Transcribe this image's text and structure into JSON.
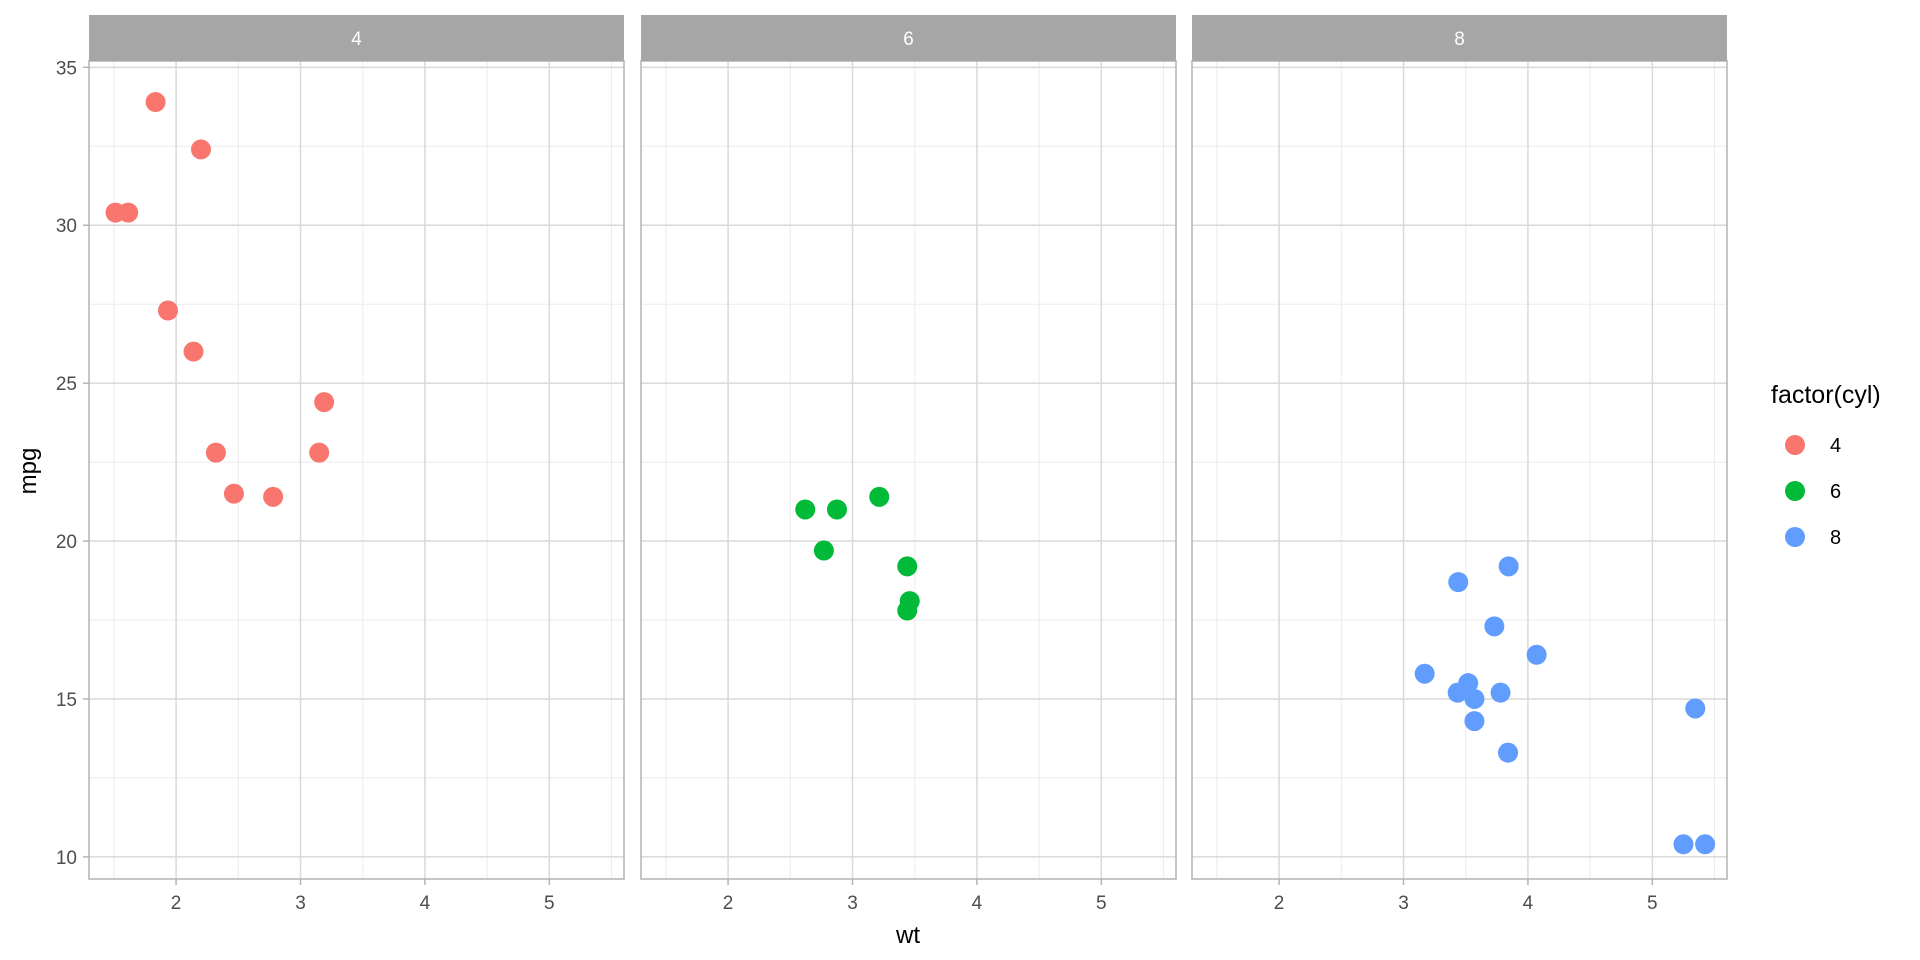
{
  "chart_data": {
    "type": "scatter",
    "facet_variable": "cyl",
    "xlabel": "wt",
    "ylabel": "mpg",
    "xlim": [
      1.3,
      5.6
    ],
    "ylim": [
      9.3,
      35.2
    ],
    "x_ticks": [
      2,
      3,
      4,
      5
    ],
    "y_ticks": [
      10,
      15,
      20,
      25,
      30,
      35
    ],
    "grid": true,
    "legend": {
      "title": "factor(cyl)",
      "position": "right",
      "entries": [
        {
          "label": "4",
          "color": "#F8766D"
        },
        {
          "label": "6",
          "color": "#00BA38"
        },
        {
          "label": "8",
          "color": "#619CFF"
        }
      ]
    },
    "panels": [
      {
        "strip_label": "4",
        "color": "#F8766D",
        "points": [
          [
            1.835,
            33.9
          ],
          [
            2.2,
            32.4
          ],
          [
            1.513,
            30.4
          ],
          [
            1.615,
            30.4
          ],
          [
            1.935,
            27.3
          ],
          [
            2.14,
            26.0
          ],
          [
            3.19,
            24.4
          ],
          [
            2.32,
            22.8
          ],
          [
            3.15,
            22.8
          ],
          [
            2.465,
            21.5
          ],
          [
            2.78,
            21.4
          ]
        ]
      },
      {
        "strip_label": "6",
        "color": "#00BA38",
        "points": [
          [
            2.62,
            21.0
          ],
          [
            2.875,
            21.0
          ],
          [
            3.215,
            21.4
          ],
          [
            2.77,
            19.7
          ],
          [
            3.44,
            19.2
          ],
          [
            3.46,
            18.1
          ],
          [
            3.44,
            17.8
          ]
        ]
      },
      {
        "strip_label": "8",
        "color": "#619CFF",
        "points": [
          [
            3.44,
            18.7
          ],
          [
            3.845,
            19.2
          ],
          [
            3.73,
            17.3
          ],
          [
            4.07,
            16.4
          ],
          [
            3.17,
            15.8
          ],
          [
            3.52,
            15.5
          ],
          [
            3.435,
            15.2
          ],
          [
            3.78,
            15.2
          ],
          [
            3.57,
            15.0
          ],
          [
            3.57,
            14.3
          ],
          [
            5.345,
            14.7
          ],
          [
            3.84,
            13.3
          ],
          [
            5.25,
            10.4
          ],
          [
            5.424,
            10.4
          ]
        ]
      }
    ]
  }
}
